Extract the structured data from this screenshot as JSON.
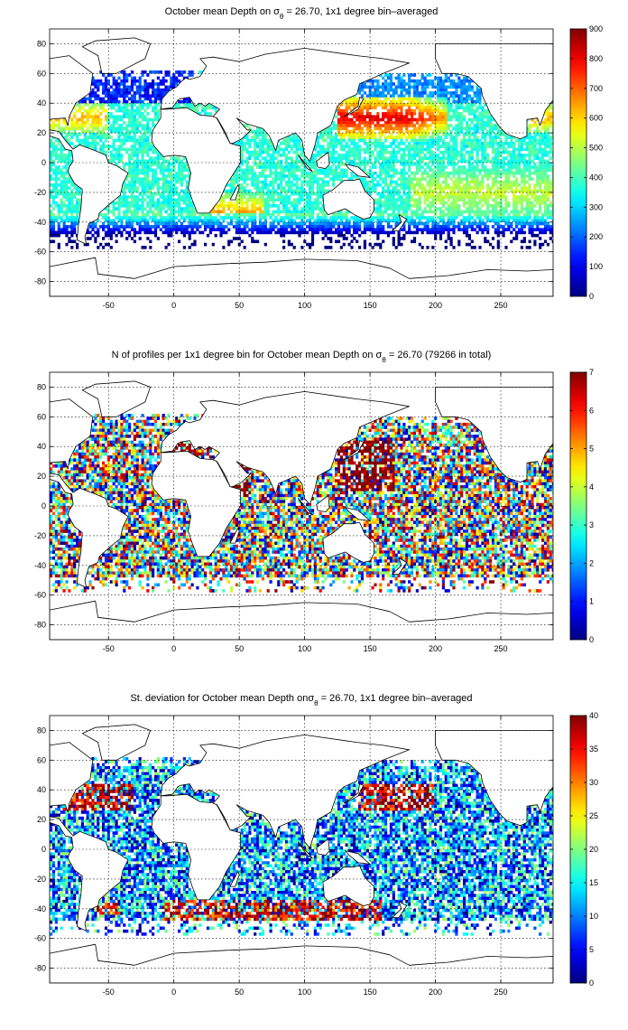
{
  "chart_data": [
    {
      "type": "heatmap",
      "title_pre": "October mean Depth on σ",
      "title_sub": "θ",
      "title_post": " = 26.70, 1x1 degree bin–averaged",
      "xticks": [
        "-50",
        "0",
        "50",
        "100",
        "150",
        "200",
        "250"
      ],
      "yticks": [
        "80",
        "60",
        "40",
        "20",
        "0",
        "-20",
        "-40",
        "-60",
        "-80"
      ],
      "xlim": [
        -95,
        290
      ],
      "ylim": [
        -90,
        90
      ],
      "grid": true,
      "colorbar_ticks": [
        "0",
        "100",
        "200",
        "300",
        "400",
        "500",
        "600",
        "700",
        "800",
        "900"
      ],
      "clim": [
        0,
        900
      ],
      "colormap": "jet",
      "field": "mean"
    },
    {
      "type": "heatmap",
      "title_pre": "N of profiles per 1x1 degree bin for October mean Depth on σ",
      "title_sub": "θ",
      "title_post": " = 26.70 (79266 in total)",
      "xticks": [
        "-50",
        "0",
        "50",
        "100",
        "150",
        "200",
        "250"
      ],
      "yticks": [
        "80",
        "60",
        "40",
        "20",
        "0",
        "-20",
        "-40",
        "-60",
        "-80"
      ],
      "xlim": [
        -95,
        290
      ],
      "ylim": [
        -90,
        90
      ],
      "grid": true,
      "colorbar_ticks": [
        "0",
        "1",
        "2",
        "3",
        "4",
        "5",
        "6",
        "7"
      ],
      "clim": [
        0,
        7
      ],
      "colormap": "jet",
      "field": "count"
    },
    {
      "type": "heatmap",
      "title_pre": "St. deviation for October mean Depth onσ",
      "title_sub": "θ",
      "title_post": " = 26.70, 1x1 degree bin–averaged",
      "xticks": [
        "-50",
        "0",
        "50",
        "100",
        "150",
        "200",
        "250"
      ],
      "yticks": [
        "80",
        "60",
        "40",
        "20",
        "0",
        "-20",
        "-40",
        "-60",
        "-80"
      ],
      "xlim": [
        -95,
        290
      ],
      "ylim": [
        -90,
        90
      ],
      "grid": true,
      "colorbar_ticks": [
        "0",
        "5",
        "10",
        "15",
        "20",
        "25",
        "30",
        "35",
        "40"
      ],
      "clim": [
        0,
        40
      ],
      "colormap": "jet",
      "field": "std"
    }
  ]
}
